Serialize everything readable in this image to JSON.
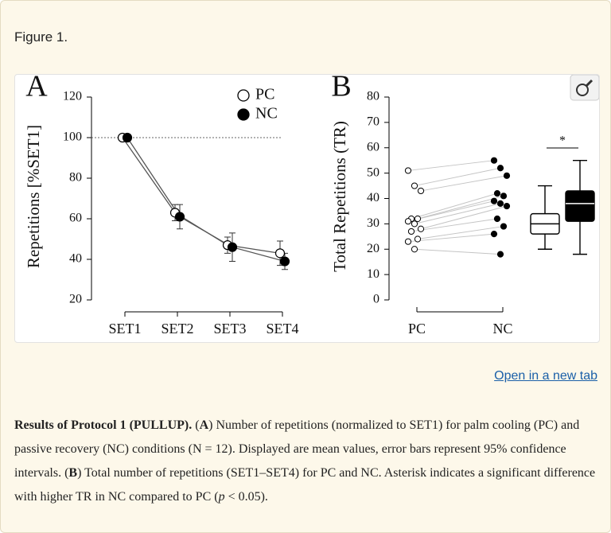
{
  "figure_label": "Figure 1.",
  "chart_data": [
    {
      "type": "line",
      "panel": "A",
      "ylabel": "Repetitions [%SET1]",
      "categories": [
        "SET1",
        "SET2",
        "SET3",
        "SET4"
      ],
      "series": [
        {
          "name": "PC",
          "color": "#ffffff",
          "values": [
            100,
            63,
            47,
            43
          ],
          "errors": [
            null,
            4,
            4,
            6
          ]
        },
        {
          "name": "NC",
          "color": "#000000",
          "values": [
            100,
            61,
            46,
            39
          ],
          "errors": [
            null,
            6,
            7,
            4
          ]
        }
      ],
      "ylim": [
        20,
        120
      ],
      "yticks": [
        20,
        40,
        60,
        80,
        100,
        120
      ],
      "reference_line": 100
    },
    {
      "type": "paired_box",
      "panel": "B",
      "ylabel": "Total Repetitions (TR)",
      "categories": [
        "PC",
        "NC"
      ],
      "series": [
        {
          "name": "PC",
          "color": "#ffffff",
          "values": [
            51,
            45,
            43,
            32,
            32,
            31,
            30,
            28,
            27,
            24,
            23,
            20
          ]
        },
        {
          "name": "NC",
          "color": "#000000",
          "values": [
            55,
            52,
            49,
            42,
            41,
            39,
            38,
            37,
            32,
            29,
            26,
            18
          ]
        }
      ],
      "boxes": [
        {
          "min": 20,
          "q1": 26,
          "median": 30,
          "q3": 34,
          "max": 45
        },
        {
          "min": 18,
          "q1": 31,
          "median": 38,
          "q3": 43,
          "max": 55
        }
      ],
      "annotation": "*",
      "ylim": [
        0,
        80
      ],
      "yticks": [
        0,
        10,
        20,
        30,
        40,
        50,
        60,
        70,
        80
      ]
    }
  ],
  "link": "Open in a new tab",
  "caption": [
    "Results of Protocol 1 (PULLUP).",
    " (",
    "A",
    ") Number of repetitions (normalized to SET1) for palm cooling (PC) and passive recovery (NC) conditions (N = 12). Displayed are mean values, error bars represent 95% confidence intervals. (",
    "B",
    ") Total number of repetitions (SET1–SET4) for PC and NC. Asterisk indicates a significant difference with higher TR in NC compared to PC (",
    "p",
    " < 0.05)."
  ]
}
